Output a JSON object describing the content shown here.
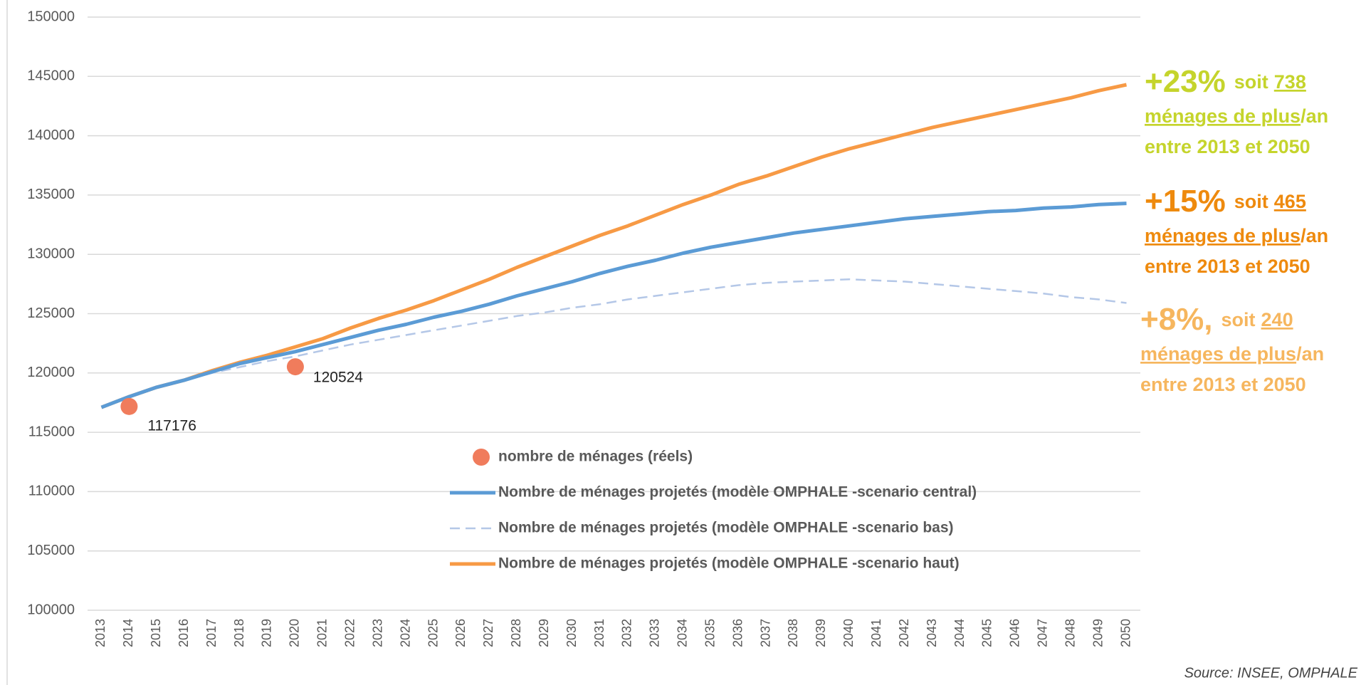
{
  "chart_data": {
    "type": "line",
    "categories": [
      2013,
      2014,
      2015,
      2016,
      2017,
      2018,
      2019,
      2020,
      2021,
      2022,
      2023,
      2024,
      2025,
      2026,
      2027,
      2028,
      2029,
      2030,
      2031,
      2032,
      2033,
      2034,
      2035,
      2036,
      2037,
      2038,
      2039,
      2040,
      2041,
      2042,
      2043,
      2044,
      2045,
      2046,
      2047,
      2048,
      2049,
      2050
    ],
    "ylim": [
      100000,
      150000
    ],
    "yticks": [
      100000,
      105000,
      110000,
      115000,
      120000,
      125000,
      130000,
      135000,
      140000,
      145000,
      150000
    ],
    "grid": true,
    "series": [
      {
        "name": "nombre de ménages (réels)",
        "type": "scatter",
        "color": "#f07c5c",
        "x": [
          2014,
          2020
        ],
        "values": [
          117176,
          120524
        ]
      },
      {
        "name": "Nombre de ménages projetés (modèle OMPHALE -scenario central)",
        "color": "#5b9bd5",
        "dashed": false,
        "values": [
          117100,
          118000,
          118800,
          119400,
          120100,
          120800,
          121300,
          121800,
          122400,
          123000,
          123600,
          124100,
          124700,
          125200,
          125800,
          126500,
          127100,
          127700,
          128400,
          129000,
          129500,
          130100,
          130600,
          131000,
          131400,
          131800,
          132100,
          132400,
          132700,
          133000,
          133200,
          133400,
          133600,
          133700,
          133900,
          134000,
          134200,
          134300
        ]
      },
      {
        "name": "Nombre de ménages projetés (modèle OMPHALE -scenario bas)",
        "color": "#b4c7e7",
        "dashed": true,
        "values": [
          117100,
          118000,
          118800,
          119400,
          120000,
          120500,
          121000,
          121400,
          121900,
          122400,
          122800,
          123200,
          123600,
          124000,
          124400,
          124800,
          125100,
          125500,
          125800,
          126200,
          126500,
          126800,
          127100,
          127400,
          127600,
          127700,
          127800,
          127900,
          127800,
          127700,
          127500,
          127300,
          127100,
          126900,
          126700,
          126400,
          126200,
          125900
        ]
      },
      {
        "name": "Nombre de ménages projetés (modèle OMPHALE -scenario haut)",
        "color": "#f79a45",
        "dashed": false,
        "values": [
          117100,
          118000,
          118800,
          119400,
          120200,
          120900,
          121500,
          122200,
          122900,
          123800,
          124600,
          125300,
          126100,
          127000,
          127900,
          128900,
          129800,
          130700,
          131600,
          132400,
          133300,
          134200,
          135000,
          135900,
          136600,
          137400,
          138200,
          138900,
          139500,
          140100,
          140700,
          141200,
          141700,
          142200,
          142700,
          143200,
          143800,
          144300
        ]
      }
    ],
    "annotations": [
      {
        "percent": "+23%",
        "soit": "soit",
        "number": "738",
        "unit_text": "ménages de plus",
        "per": "/an",
        "period": "entre 2013 et 2050",
        "color": "#c5d42c"
      },
      {
        "percent": "+15%",
        "soit": "soit",
        "number": "465",
        "unit_text": "ménages de plus",
        "per": "/an",
        "period": "entre 2013 et 2050",
        "color": "#ee8a0e"
      },
      {
        "percent": "+8%,",
        "soit": "soit",
        "number": "240",
        "unit_text": "ménages de plus",
        "per": "/an",
        "period": "entre 2013 et 2050",
        "color": "#f6b65e"
      }
    ],
    "source": "Source: INSEE, OMPHALE"
  }
}
